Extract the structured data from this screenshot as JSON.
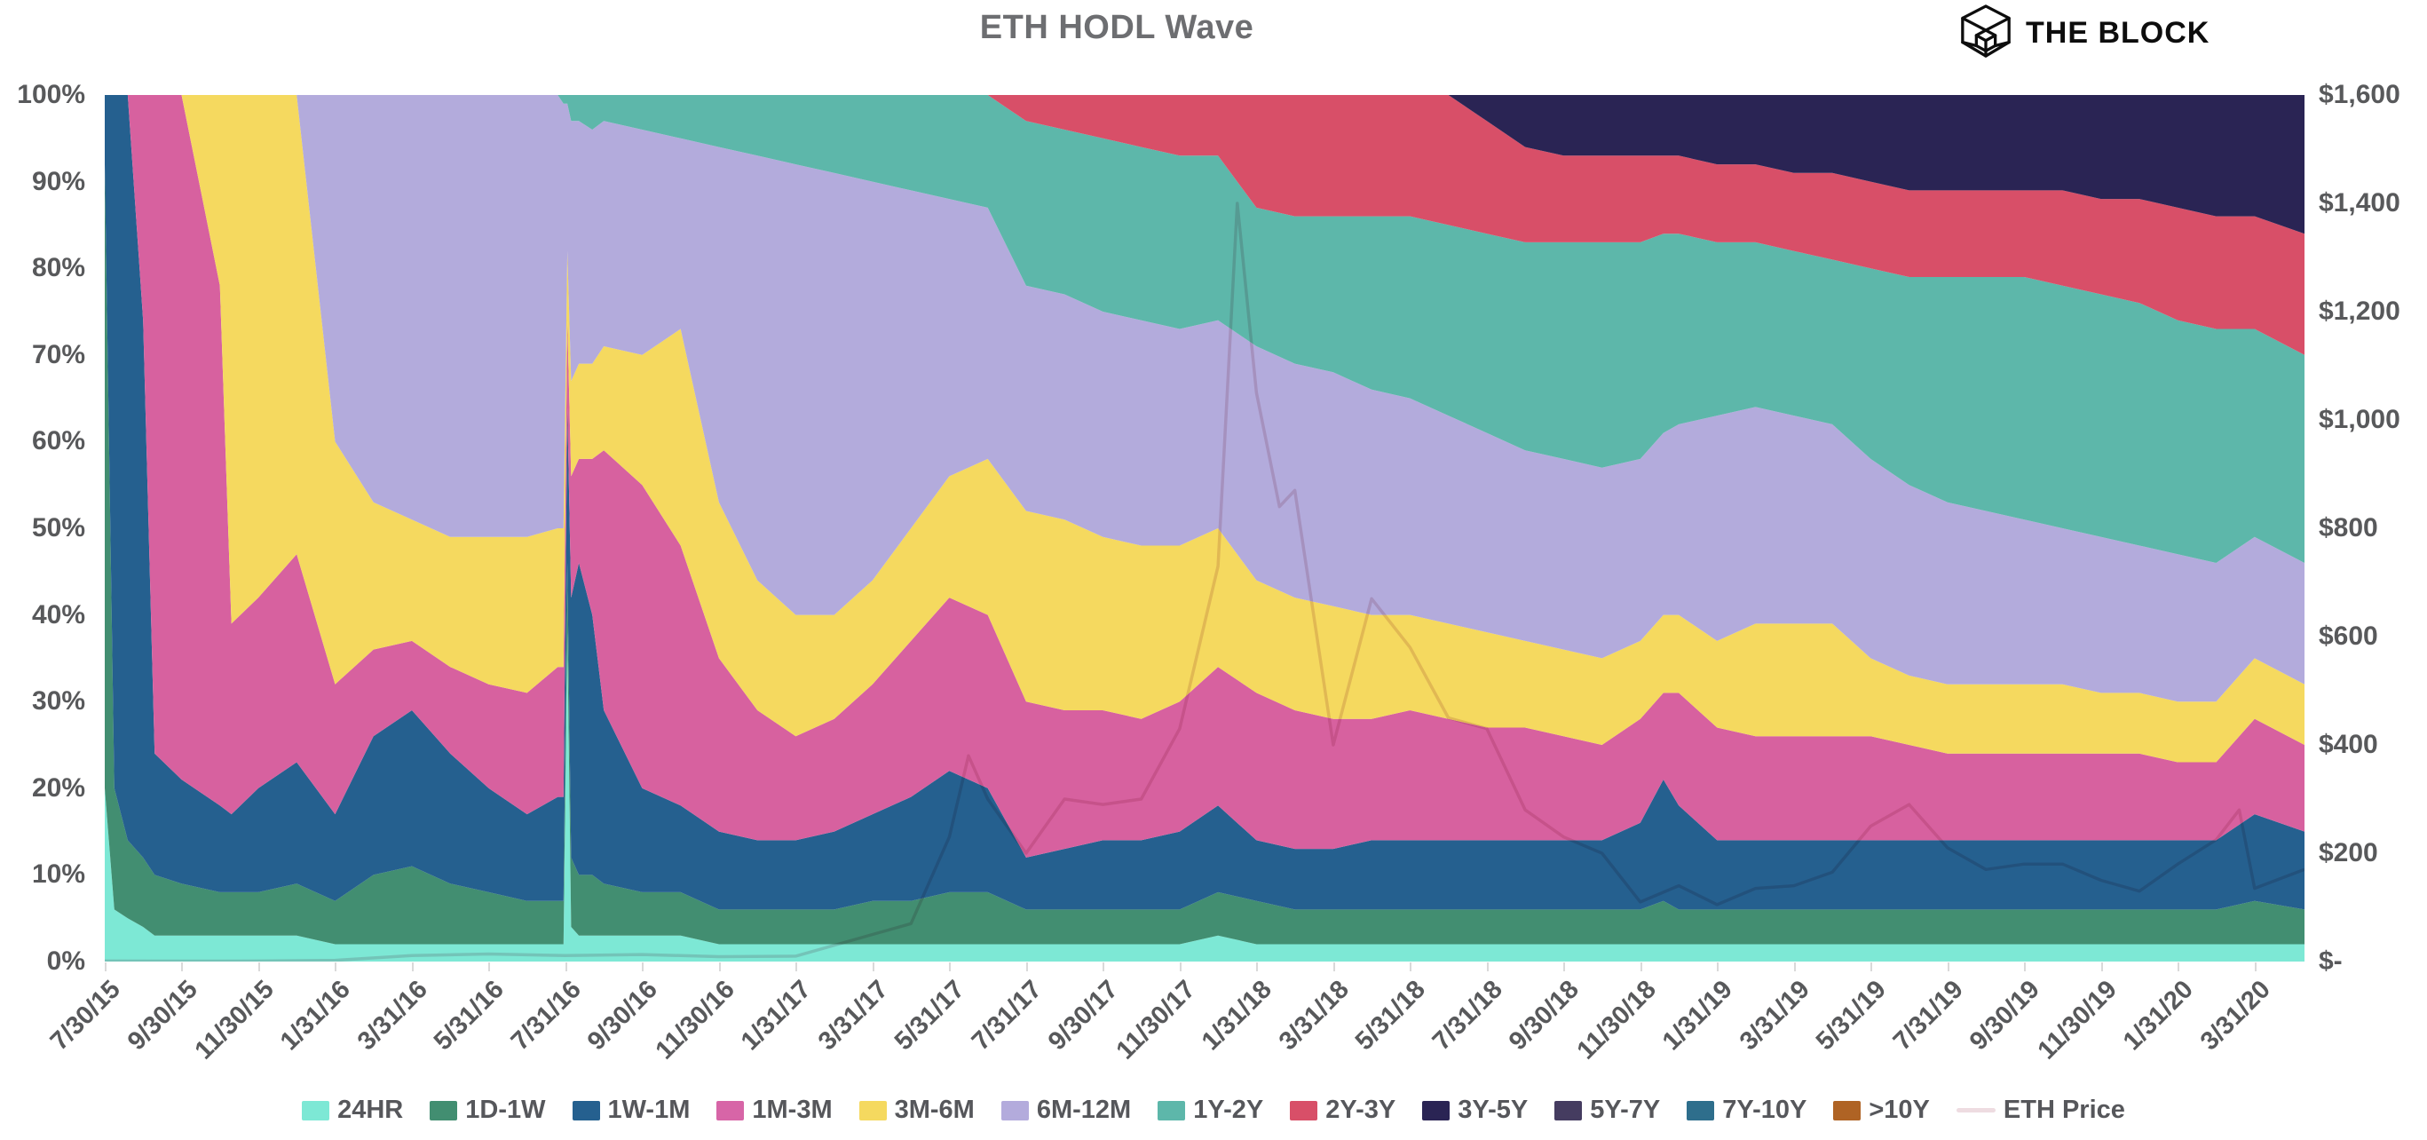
{
  "title": "ETH HODL Wave",
  "brand": {
    "name": "THE BLOCK",
    "logo_icon": "block-cube-icon"
  },
  "axes": {
    "left": {
      "ticks": [
        {
          "label": "0%",
          "value": 0
        },
        {
          "label": "10%",
          "value": 10
        },
        {
          "label": "20%",
          "value": 20
        },
        {
          "label": "30%",
          "value": 30
        },
        {
          "label": "40%",
          "value": 40
        },
        {
          "label": "50%",
          "value": 50
        },
        {
          "label": "60%",
          "value": 60
        },
        {
          "label": "70%",
          "value": 70
        },
        {
          "label": "80%",
          "value": 80
        },
        {
          "label": "90%",
          "value": 90
        },
        {
          "label": "100%",
          "value": 100
        }
      ]
    },
    "right": {
      "ticks": [
        {
          "label": "$-",
          "value": 0
        },
        {
          "label": "$200",
          "value": 200
        },
        {
          "label": "$400",
          "value": 400
        },
        {
          "label": "$600",
          "value": 600
        },
        {
          "label": "$800",
          "value": 800
        },
        {
          "label": "$1,000",
          "value": 1000
        },
        {
          "label": "$1,200",
          "value": 1200
        },
        {
          "label": "$1,400",
          "value": 1400
        },
        {
          "label": "$1,600",
          "value": 1600
        }
      ]
    },
    "x": {
      "tick_months": [
        0,
        2,
        4,
        6,
        8,
        10,
        12,
        14,
        16,
        18,
        20,
        22,
        24,
        26,
        28,
        30,
        32,
        34,
        36,
        38,
        40,
        42,
        44,
        46,
        48,
        50,
        52,
        54,
        56
      ],
      "ticks": [
        "7/30/15",
        "9/30/15",
        "11/30/15",
        "1/31/16",
        "3/31/16",
        "5/31/16",
        "7/31/16",
        "9/30/16",
        "11/30/16",
        "1/31/17",
        "3/31/17",
        "5/31/17",
        "7/31/17",
        "9/30/17",
        "11/30/17",
        "1/31/18",
        "3/31/18",
        "5/31/18",
        "7/31/18",
        "9/30/18",
        "11/30/18",
        "1/31/19",
        "3/31/19",
        "5/31/19",
        "7/31/19",
        "9/30/19",
        "11/30/19",
        "1/31/20",
        "3/31/20"
      ]
    }
  },
  "legend": {
    "items": [
      {
        "label": "24HR",
        "color": "#7de8d5",
        "type": "box"
      },
      {
        "label": "1D-1W",
        "color": "#428e71",
        "type": "box"
      },
      {
        "label": "1W-1M",
        "color": "#25608f",
        "type": "box"
      },
      {
        "label": "1M-3M",
        "color": "#d765a7",
        "type": "box"
      },
      {
        "label": "3M-6M",
        "color": "#f5d95f",
        "type": "box"
      },
      {
        "label": "6M-12M",
        "color": "#b3abdc",
        "type": "box"
      },
      {
        "label": "1Y-2Y",
        "color": "#5db7aa",
        "type": "box"
      },
      {
        "label": "2Y-3Y",
        "color": "#d84f68",
        "type": "box"
      },
      {
        "label": "3Y-5Y",
        "color": "#2a2454",
        "type": "box"
      },
      {
        "label": "5Y-7Y",
        "color": "#453c60",
        "type": "box"
      },
      {
        "label": "7Y-10Y",
        "color": "#2e6e8c",
        "type": "box"
      },
      {
        "label": ">10Y",
        "color": "#af6324",
        "type": "box"
      },
      {
        "label": "ETH Price",
        "color": "#eedce1",
        "type": "line"
      }
    ]
  },
  "chart_data": {
    "type": "area",
    "stacking": "percent",
    "title": "ETH HODL Wave",
    "x_unit": "months since 7/30/15 (ETH genesis)",
    "x_domain": [
      0,
      57.3
    ],
    "ylim_left": [
      0,
      100
    ],
    "ylim_right": [
      0,
      1600
    ],
    "grid": false,
    "legend_position": "bottom",
    "x": [
      0,
      0.25,
      0.6,
      1,
      1.3,
      2,
      3,
      3.3,
      4,
      5,
      6,
      7,
      8,
      9,
      10,
      11,
      11.8,
      11.95,
      12.05,
      12.15,
      12.35,
      12.7,
      13,
      14,
      15,
      16,
      17,
      18,
      19,
      20,
      21,
      22,
      23,
      24,
      25,
      26,
      27,
      28,
      29,
      30,
      31,
      32,
      33,
      34,
      35,
      36,
      37,
      38,
      39,
      40,
      40.6,
      41,
      42,
      43,
      44,
      45,
      46,
      47,
      48,
      49,
      50,
      51,
      52,
      53,
      54,
      55,
      56,
      57.3
    ],
    "series": [
      {
        "name": "24HR",
        "color": "#7de8d5",
        "values": [
          20,
          6,
          5,
          4,
          3,
          3,
          3,
          3,
          3,
          3,
          2,
          2,
          2,
          2,
          2,
          2,
          2,
          2,
          38,
          4,
          3,
          3,
          3,
          3,
          3,
          2,
          2,
          2,
          2,
          2,
          2,
          2,
          2,
          2,
          2,
          2,
          2,
          2,
          3,
          2,
          2,
          2,
          2,
          2,
          2,
          2,
          2,
          2,
          2,
          2,
          2,
          2,
          2,
          2,
          2,
          2,
          2,
          2,
          2,
          2,
          2,
          2,
          2,
          2,
          2,
          2,
          2,
          2
        ]
      },
      {
        "name": "1D-1W",
        "color": "#428e71",
        "values": [
          72,
          14,
          9,
          8,
          7,
          6,
          5,
          5,
          5,
          6,
          5,
          8,
          9,
          7,
          6,
          5,
          5,
          5,
          8,
          8,
          7,
          7,
          6,
          5,
          5,
          4,
          4,
          4,
          4,
          5,
          5,
          6,
          6,
          4,
          4,
          4,
          4,
          4,
          5,
          5,
          4,
          4,
          4,
          4,
          4,
          4,
          4,
          4,
          4,
          4,
          5,
          4,
          4,
          4,
          4,
          4,
          4,
          4,
          4,
          4,
          4,
          4,
          4,
          4,
          4,
          4,
          5,
          4
        ]
      },
      {
        "name": "1W-1M",
        "color": "#25608f",
        "values": [
          8,
          80,
          86,
          62,
          14,
          12,
          10,
          9,
          12,
          14,
          10,
          16,
          18,
          15,
          12,
          10,
          12,
          12,
          18,
          30,
          36,
          30,
          20,
          12,
          10,
          9,
          8,
          8,
          9,
          10,
          12,
          14,
          12,
          6,
          7,
          8,
          8,
          9,
          10,
          7,
          7,
          7,
          8,
          8,
          8,
          8,
          8,
          8,
          8,
          10,
          14,
          12,
          8,
          8,
          8,
          8,
          8,
          8,
          8,
          8,
          8,
          8,
          8,
          8,
          8,
          8,
          10,
          9
        ]
      },
      {
        "name": "1M-3M",
        "color": "#d7619f",
        "values": [
          0,
          0,
          0,
          26,
          76,
          79,
          60,
          22,
          22,
          24,
          15,
          10,
          8,
          10,
          12,
          14,
          15,
          15,
          10,
          14,
          12,
          18,
          30,
          35,
          30,
          20,
          15,
          12,
          13,
          15,
          18,
          20,
          20,
          18,
          16,
          15,
          14,
          15,
          16,
          17,
          16,
          15,
          14,
          15,
          14,
          13,
          13,
          12,
          11,
          12,
          10,
          13,
          13,
          12,
          12,
          12,
          12,
          11,
          10,
          10,
          10,
          10,
          10,
          10,
          9,
          9,
          11,
          10
        ]
      },
      {
        "name": "3M-6M",
        "color": "#f5d95f",
        "values": [
          0,
          0,
          0,
          0,
          0,
          0,
          22,
          61,
          58,
          53,
          28,
          17,
          14,
          15,
          17,
          18,
          16,
          16,
          8,
          11,
          11,
          11,
          12,
          15,
          25,
          18,
          15,
          14,
          12,
          12,
          13,
          14,
          18,
          22,
          22,
          20,
          20,
          18,
          16,
          13,
          13,
          13,
          12,
          11,
          11,
          11,
          10,
          10,
          10,
          9,
          9,
          9,
          10,
          13,
          13,
          13,
          9,
          8,
          8,
          8,
          8,
          8,
          7,
          7,
          7,
          7,
          7,
          7
        ]
      },
      {
        "name": "6M-12M",
        "color": "#b3abdc",
        "values": [
          0,
          0,
          0,
          0,
          0,
          0,
          0,
          0,
          0,
          0,
          40,
          47,
          49,
          51,
          51,
          51,
          50,
          49,
          17,
          30,
          28,
          27,
          26,
          26,
          22,
          41,
          49,
          52,
          51,
          46,
          39,
          32,
          29,
          26,
          26,
          26,
          26,
          25,
          24,
          27,
          27,
          27,
          26,
          25,
          24,
          23,
          22,
          22,
          22,
          21,
          21,
          22,
          26,
          25,
          24,
          23,
          23,
          22,
          21,
          20,
          19,
          18,
          18,
          17,
          17,
          16,
          14,
          14
        ]
      },
      {
        "name": "1Y-2Y",
        "color": "#5db7aa",
        "values": [
          0,
          0,
          0,
          0,
          0,
          0,
          0,
          0,
          0,
          0,
          0,
          0,
          0,
          0,
          0,
          0,
          0,
          1,
          1,
          3,
          3,
          4,
          3,
          4,
          5,
          6,
          7,
          8,
          9,
          10,
          11,
          12,
          13,
          19,
          19,
          20,
          20,
          20,
          19,
          16,
          17,
          18,
          20,
          21,
          22,
          23,
          24,
          25,
          26,
          25,
          23,
          22,
          20,
          19,
          19,
          19,
          22,
          24,
          26,
          27,
          28,
          28,
          28,
          28,
          27,
          27,
          24,
          24
        ]
      },
      {
        "name": "2Y-3Y",
        "color": "#d84f68",
        "values": [
          0,
          0,
          0,
          0,
          0,
          0,
          0,
          0,
          0,
          0,
          0,
          0,
          0,
          0,
          0,
          0,
          0,
          0,
          0,
          0,
          0,
          0,
          0,
          0,
          0,
          0,
          0,
          0,
          0,
          0,
          0,
          0,
          0,
          3,
          4,
          5,
          6,
          7,
          7,
          13,
          14,
          14,
          14,
          14,
          15,
          13,
          11,
          10,
          10,
          10,
          9,
          9,
          9,
          9,
          9,
          10,
          10,
          10,
          10,
          10,
          10,
          11,
          11,
          12,
          13,
          13,
          13,
          14
        ]
      },
      {
        "name": "3Y-5Y",
        "color": "#2a2454",
        "values": [
          0,
          0,
          0,
          0,
          0,
          0,
          0,
          0,
          0,
          0,
          0,
          0,
          0,
          0,
          0,
          0,
          0,
          0,
          0,
          0,
          0,
          0,
          0,
          0,
          0,
          0,
          0,
          0,
          0,
          0,
          0,
          0,
          0,
          0,
          0,
          0,
          0,
          0,
          0,
          0,
          0,
          0,
          0,
          0,
          0,
          3,
          6,
          7,
          7,
          7,
          7,
          7,
          8,
          8,
          9,
          9,
          10,
          11,
          11,
          11,
          11,
          11,
          12,
          12,
          13,
          14,
          14,
          16
        ]
      }
    ],
    "price_line": {
      "name": "ETH Price",
      "color": "#e9d4da",
      "axis": "right",
      "x": [
        0,
        2,
        4,
        6,
        8,
        10,
        12,
        14,
        16,
        18,
        20,
        21,
        22,
        22.5,
        23,
        24,
        25,
        26,
        27,
        28,
        29,
        29.5,
        30,
        30.6,
        31,
        32,
        33,
        34,
        35,
        36,
        37,
        38,
        39,
        40,
        41,
        42,
        43,
        44,
        45,
        46,
        47,
        48,
        49,
        50,
        51,
        52,
        53,
        54,
        55,
        55.6,
        56,
        57.3
      ],
      "values": [
        1,
        0.9,
        0.95,
        2.3,
        11,
        14,
        11,
        13,
        9,
        10,
        50,
        70,
        230,
        380,
        300,
        200,
        300,
        290,
        300,
        430,
        730,
        1400,
        1050,
        840,
        870,
        400,
        670,
        580,
        450,
        430,
        280,
        230,
        200,
        110,
        140,
        105,
        135,
        140,
        165,
        250,
        290,
        210,
        170,
        180,
        180,
        150,
        130,
        180,
        225,
        280,
        135,
        170
      ]
    }
  }
}
